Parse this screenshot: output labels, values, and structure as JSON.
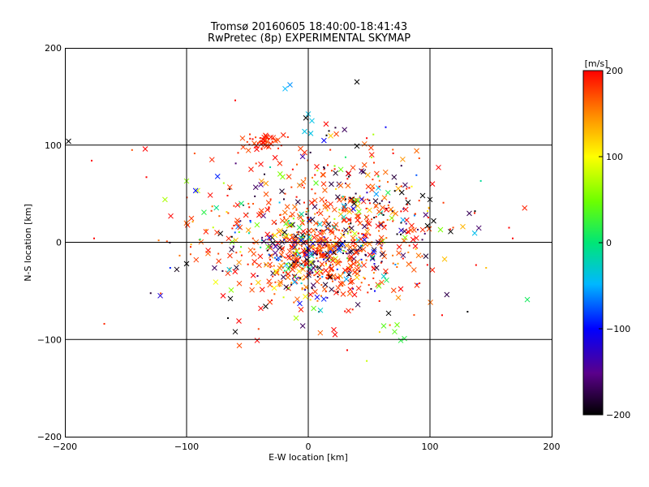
{
  "chart_data": {
    "type": "scatter",
    "title": "Tromsø 20160605 18:40:00-18:41:43",
    "subtitle": "RwPretec (8p) EXPERIMENTAL SKYMAP",
    "xlabel": "E-W location [km]",
    "ylabel": "N-S location [km]",
    "xlim": [
      -200,
      200
    ],
    "ylim": [
      -200,
      200
    ],
    "xticks": [
      -200,
      -100,
      0,
      100,
      200
    ],
    "yticks": [
      -200,
      -100,
      0,
      100,
      200
    ],
    "xtick_labels": [
      "−200",
      "−100",
      "0",
      "100",
      "200"
    ],
    "ytick_labels": [
      "−200",
      "−100",
      "0",
      "100",
      "200"
    ],
    "grid": true,
    "grid_lines_at": [
      -100,
      0,
      100
    ],
    "colorbar": {
      "label": "[m/s]",
      "range": [
        -200,
        200
      ],
      "ticks": [
        -200,
        -100,
        0,
        100,
        200
      ],
      "tick_labels": [
        "−200",
        "−100",
        "0",
        "100",
        "200"
      ],
      "colormap": "rainbow (black-purple-blue-cyan-green-yellow-orange-red)"
    },
    "marker_legend": {
      "x": "cross marker",
      "dot": "small dot marker"
    },
    "clusters": [
      {
        "cx": 10,
        "cy": -15,
        "sx": 28,
        "sy": 22,
        "n": 520,
        "description": "dense central cluster"
      },
      {
        "cx": 0,
        "cy": 15,
        "sx": 55,
        "sy": 40,
        "n": 420,
        "description": "broad spread"
      },
      {
        "cx": -38,
        "cy": 102,
        "sx": 8,
        "sy": 5,
        "n": 45,
        "description": "northern red cluster"
      },
      {
        "cx": 45,
        "cy": 40,
        "sx": 30,
        "sy": 25,
        "n": 120,
        "description": "north-east spread"
      }
    ],
    "notable_points": [
      {
        "x": -197,
        "y": 104,
        "marker": "x",
        "v": -200
      },
      {
        "x": -134,
        "y": 96,
        "marker": "x",
        "v": 200
      },
      {
        "x": -178,
        "y": 84,
        "marker": "dot",
        "v": 200
      },
      {
        "x": -133,
        "y": 67,
        "marker": "dot",
        "v": 200
      },
      {
        "x": -113,
        "y": 27,
        "marker": "x",
        "v": 200
      },
      {
        "x": -100,
        "y": 63,
        "marker": "x",
        "v": 60
      },
      {
        "x": -176,
        "y": 4,
        "marker": "dot",
        "v": 200
      },
      {
        "x": -100,
        "y": -22,
        "marker": "x",
        "v": -200
      },
      {
        "x": -60,
        "y": 146,
        "marker": "dot",
        "v": 200
      },
      {
        "x": -15,
        "y": 162,
        "marker": "x",
        "v": -60
      },
      {
        "x": -19,
        "y": 158,
        "marker": "x",
        "v": -50
      },
      {
        "x": 40,
        "y": 165,
        "marker": "x",
        "v": -200
      },
      {
        "x": 0,
        "y": 132,
        "marker": "x",
        "v": -40
      },
      {
        "x": -2,
        "y": 128,
        "marker": "x",
        "v": -200
      },
      {
        "x": 3,
        "y": 125,
        "marker": "x",
        "v": -40
      },
      {
        "x": -3,
        "y": 114,
        "marker": "x",
        "v": -40
      },
      {
        "x": 2,
        "y": 112,
        "marker": "x",
        "v": -40
      },
      {
        "x": 15,
        "y": 110,
        "marker": "dot",
        "v": -200
      },
      {
        "x": 40,
        "y": 99,
        "marker": "x",
        "v": -200
      },
      {
        "x": 100,
        "y": 44,
        "marker": "x",
        "v": -200
      },
      {
        "x": 102,
        "y": 60,
        "marker": "x",
        "v": 200
      },
      {
        "x": 107,
        "y": 77,
        "marker": "x",
        "v": 200
      },
      {
        "x": 117,
        "y": 11,
        "marker": "x",
        "v": -200
      },
      {
        "x": 137,
        "y": 32,
        "marker": "dot",
        "v": -200
      },
      {
        "x": 165,
        "y": 15,
        "marker": "dot",
        "v": 200
      },
      {
        "x": 168,
        "y": 4,
        "marker": "dot",
        "v": 200
      },
      {
        "x": 180,
        "y": -59,
        "marker": "x",
        "v": 10
      },
      {
        "x": 110,
        "y": -75,
        "marker": "dot",
        "v": 200
      },
      {
        "x": 76,
        "y": -101,
        "marker": "x",
        "v": 20
      },
      {
        "x": 79,
        "y": -99,
        "marker": "x",
        "v": 20
      },
      {
        "x": 66,
        "y": -73,
        "marker": "x",
        "v": -200
      },
      {
        "x": 73,
        "y": -85,
        "marker": "x",
        "v": 50
      },
      {
        "x": 62,
        "y": -86,
        "marker": "x",
        "v": 40
      },
      {
        "x": 71,
        "y": -92,
        "marker": "x",
        "v": 40
      },
      {
        "x": 22,
        "y": -95,
        "marker": "x",
        "v": 200
      },
      {
        "x": 21,
        "y": -90,
        "marker": "x",
        "v": 200
      },
      {
        "x": 32,
        "y": -111,
        "marker": "dot",
        "v": 200
      },
      {
        "x": -42,
        "y": -101,
        "marker": "x",
        "v": 200
      },
      {
        "x": -60,
        "y": -92,
        "marker": "x",
        "v": -200
      },
      {
        "x": -66,
        "y": -78,
        "marker": "dot",
        "v": -200
      },
      {
        "x": -57,
        "y": -81,
        "marker": "x",
        "v": 200
      },
      {
        "x": -70,
        "y": -55,
        "marker": "x",
        "v": 200
      },
      {
        "x": -64,
        "y": -58,
        "marker": "x",
        "v": -200
      },
      {
        "x": -35,
        "y": -66,
        "marker": "x",
        "v": -200
      },
      {
        "x": -39,
        "y": -68,
        "marker": "x",
        "v": 200
      },
      {
        "x": -10,
        "y": -78,
        "marker": "x",
        "v": 70
      },
      {
        "x": -7,
        "y": -63,
        "marker": "x",
        "v": -100
      },
      {
        "x": 10,
        "y": -70,
        "marker": "x",
        "v": -30
      },
      {
        "x": 38,
        "y": -54,
        "marker": "x",
        "v": 200
      },
      {
        "x": 58,
        "y": -45,
        "marker": "x",
        "v": 50
      },
      {
        "x": 62,
        "y": -35,
        "marker": "x",
        "v": -30
      },
      {
        "x": 74,
        "y": -57,
        "marker": "x",
        "v": 150
      },
      {
        "x": 76,
        "y": -48,
        "marker": "x",
        "v": 200
      },
      {
        "x": 88,
        "y": -4,
        "marker": "x",
        "v": 200
      },
      {
        "x": 76,
        "y": 8,
        "marker": "dot",
        "v": -200
      },
      {
        "x": 94,
        "y": 48,
        "marker": "x",
        "v": -200
      },
      {
        "x": 82,
        "y": 41,
        "marker": "x",
        "v": -200
      },
      {
        "x": 103,
        "y": 22,
        "marker": "x",
        "v": -200
      },
      {
        "x": 98,
        "y": 17,
        "marker": "x",
        "v": -200
      }
    ]
  }
}
